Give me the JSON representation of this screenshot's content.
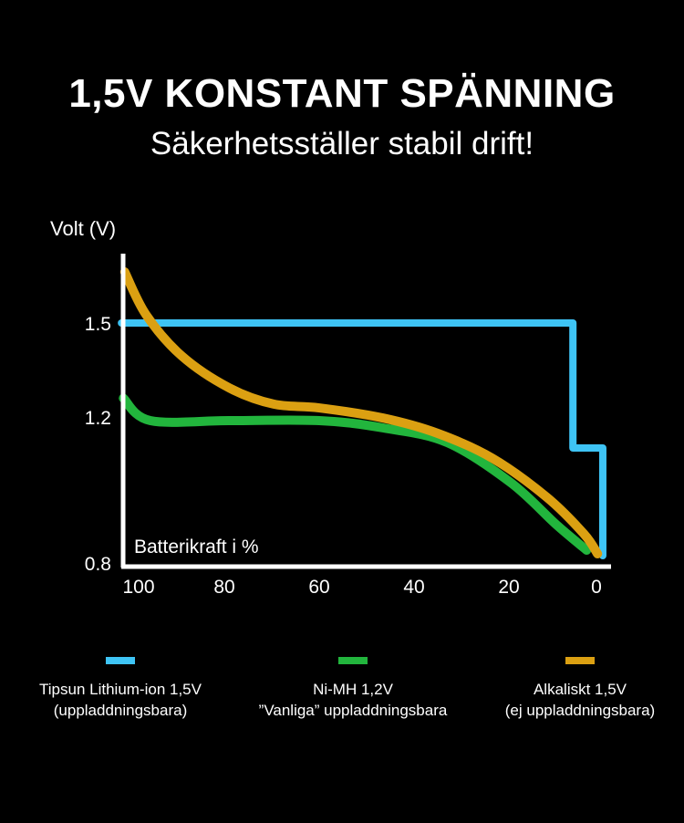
{
  "header": {
    "title": "1,5V KONSTANT SPÄNNING",
    "subtitle": "Säkerhetsställer stabil drift!"
  },
  "chart_data": {
    "type": "line",
    "title": "1,5V KONSTANT SPÄNNING",
    "subtitle": "Säkerhetsställer stabil drift!",
    "ylabel": "Volt (V)",
    "xlabel": "Batterikraft i %",
    "yticks": [
      {
        "value": 1.5,
        "label": "1.5"
      },
      {
        "value": 1.2,
        "label": "1.2"
      },
      {
        "value": 0.8,
        "label": "0.8"
      }
    ],
    "xticks": [
      {
        "value": 100,
        "label": "100"
      },
      {
        "value": 80,
        "label": "80"
      },
      {
        "value": 60,
        "label": "60"
      },
      {
        "value": 40,
        "label": "40"
      },
      {
        "value": 20,
        "label": "20"
      },
      {
        "value": 0,
        "label": "0"
      }
    ],
    "xlim": [
      101.7,
      0
    ],
    "ylim": [
      0.8,
      1.72
    ],
    "grid": false,
    "legend_position": "bottom",
    "series": [
      {
        "name": "Tipsun Lithium-ion 1,5V",
        "sub": "(uppladdningsbara)",
        "color": "#3ec4f5",
        "step": true,
        "points": [
          [
            101.7,
            1.5
          ],
          [
            6.5,
            1.5
          ],
          [
            6.5,
            1.115
          ],
          [
            0.2,
            1.115
          ],
          [
            0.2,
            0.82
          ]
        ]
      },
      {
        "name": "Ni-MH 1,2V",
        "sub": "”Vanliga” uppladdningsbara",
        "color": "#22b53d",
        "step": false,
        "points": [
          [
            101.3,
            1.26
          ],
          [
            95.6,
            1.19
          ],
          [
            79,
            1.19
          ],
          [
            60,
            1.19
          ],
          [
            46.5,
            1.17
          ],
          [
            33,
            1.13
          ],
          [
            19.6,
            1.02
          ],
          [
            10,
            0.905
          ],
          [
            3.6,
            0.835
          ]
        ]
      },
      {
        "name": "Alkaliskt 1,5V",
        "sub": "(ej uppladdningsbara)",
        "color": "#dba012",
        "step": false,
        "points": [
          [
            101,
            1.663
          ],
          [
            96.5,
            1.526
          ],
          [
            89,
            1.395
          ],
          [
            79,
            1.293
          ],
          [
            69.6,
            1.241
          ],
          [
            60,
            1.229
          ],
          [
            46.5,
            1.197
          ],
          [
            35,
            1.155
          ],
          [
            23.5,
            1.087
          ],
          [
            12,
            0.98
          ],
          [
            4.2,
            0.88
          ],
          [
            1.3,
            0.825
          ]
        ]
      }
    ]
  }
}
